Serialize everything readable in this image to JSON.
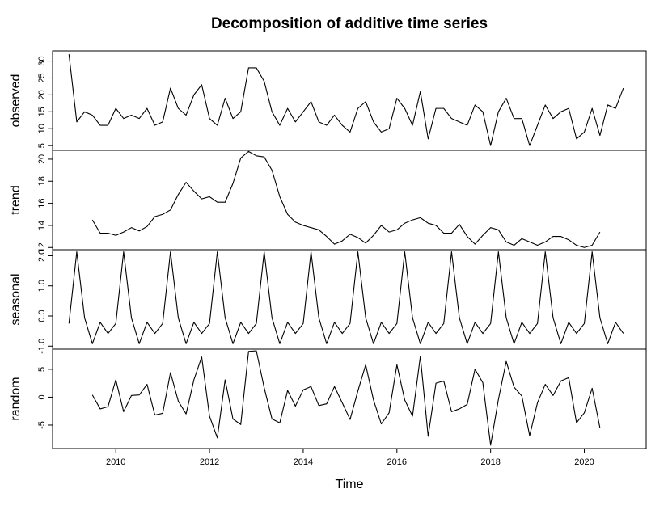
{
  "chart_data": {
    "type": "line",
    "title": "Decomposition of additive time series",
    "xlabel": "Time",
    "xlim": [
      2008.65,
      2021.32
    ],
    "x_ticks": [
      2010,
      2012,
      2014,
      2016,
      2018,
      2020
    ],
    "x_tick_labels": [
      "2010",
      "2012",
      "2014",
      "2016",
      "2018",
      "2020"
    ],
    "grid": false,
    "legend": "none",
    "line_color": "#000000",
    "series": [
      {
        "name": "observed",
        "ylim": [
          3.6,
          33
        ],
        "y_ticks": [
          5,
          10,
          15,
          20,
          25,
          30
        ],
        "y_tick_labels": [
          "5",
          "10",
          "15",
          "20",
          "25",
          "30"
        ],
        "x": [
          2009.0,
          2009.1667,
          2009.3333,
          2009.5,
          2009.6667,
          2009.8333,
          2010.0,
          2010.1667,
          2010.3333,
          2010.5,
          2010.6667,
          2010.8333,
          2011.0,
          2011.1667,
          2011.3333,
          2011.5,
          2011.6667,
          2011.8333,
          2012.0,
          2012.1667,
          2012.3333,
          2012.5,
          2012.6667,
          2012.8333,
          2013.0,
          2013.1667,
          2013.3333,
          2013.5,
          2013.6667,
          2013.8333,
          2014.0,
          2014.1667,
          2014.3333,
          2014.5,
          2014.6667,
          2014.8333,
          2015.0,
          2015.1667,
          2015.3333,
          2015.5,
          2015.6667,
          2015.8333,
          2016.0,
          2016.1667,
          2016.3333,
          2016.5,
          2016.6667,
          2016.8333,
          2017.0,
          2017.1667,
          2017.3333,
          2017.5,
          2017.6667,
          2017.8333,
          2018.0,
          2018.1667,
          2018.3333,
          2018.5,
          2018.6667,
          2018.8333,
          2019.0,
          2019.1667,
          2019.3333,
          2019.5,
          2019.6667,
          2019.8333,
          2020.0,
          2020.1667,
          2020.3333,
          2020.5,
          2020.6667,
          2020.8333
        ],
        "values": [
          32,
          12,
          15,
          14,
          11,
          11,
          16,
          13,
          14,
          13,
          16,
          11,
          12,
          22,
          16,
          14,
          20,
          23,
          13,
          11,
          19,
          13,
          15,
          28,
          28,
          24,
          15,
          11,
          16,
          12,
          15,
          18,
          12,
          11,
          14,
          11,
          9,
          16,
          18,
          12,
          9,
          10,
          19,
          16,
          11,
          21,
          7,
          16,
          16,
          13,
          12,
          11,
          17,
          15,
          5,
          15,
          19,
          13,
          13,
          5,
          11,
          17,
          13,
          15,
          16,
          7,
          9,
          16,
          8,
          17,
          16,
          22
        ]
      },
      {
        "name": "trend",
        "ylim": [
          11.8,
          20.8
        ],
        "y_ticks": [
          12,
          14,
          16,
          18,
          20
        ],
        "y_tick_labels": [
          "12",
          "14",
          "16",
          "18",
          "20"
        ],
        "x": [
          2009.5,
          2009.6667,
          2009.8333,
          2010.0,
          2010.1667,
          2010.3333,
          2010.5,
          2010.6667,
          2010.8333,
          2011.0,
          2011.1667,
          2011.3333,
          2011.5,
          2011.6667,
          2011.8333,
          2012.0,
          2012.1667,
          2012.3333,
          2012.5,
          2012.6667,
          2012.8333,
          2013.0,
          2013.1667,
          2013.3333,
          2013.5,
          2013.6667,
          2013.8333,
          2014.0,
          2014.1667,
          2014.3333,
          2014.5,
          2014.6667,
          2014.8333,
          2015.0,
          2015.1667,
          2015.3333,
          2015.5,
          2015.6667,
          2015.8333,
          2016.0,
          2016.1667,
          2016.3333,
          2016.5,
          2016.6667,
          2016.8333,
          2017.0,
          2017.1667,
          2017.3333,
          2017.5,
          2017.6667,
          2017.8333,
          2018.0,
          2018.1667,
          2018.3333,
          2018.5,
          2018.6667,
          2018.8333,
          2019.0,
          2019.1667,
          2019.3333,
          2019.5,
          2019.6667,
          2019.8333,
          2020.0,
          2020.1667,
          2020.3333
        ],
        "values": [
          14.5,
          13.3,
          13.3,
          13.1,
          13.4,
          13.8,
          13.5,
          13.9,
          14.8,
          15.0,
          15.4,
          16.8,
          17.9,
          17.1,
          16.4,
          16.6,
          16.1,
          16.1,
          17.8,
          20.1,
          20.7,
          20.3,
          20.2,
          19.0,
          16.6,
          15.0,
          14.3,
          14.0,
          13.8,
          13.6,
          13.0,
          12.3,
          12.6,
          13.2,
          12.9,
          12.4,
          13.1,
          14.0,
          13.4,
          13.6,
          14.2,
          14.5,
          14.7,
          14.2,
          14.0,
          13.3,
          13.3,
          14.1,
          13.0,
          12.3,
          13.1,
          13.8,
          13.6,
          12.5,
          12.2,
          12.8,
          12.5,
          12.2,
          12.5,
          13.0,
          13.0,
          12.7,
          12.2,
          12.0,
          12.2,
          13.4
        ]
      },
      {
        "name": "seasonal",
        "ylim": [
          -1.1,
          2.2
        ],
        "y_ticks": [
          -1.0,
          0.0,
          1.0,
          2.0
        ],
        "y_tick_labels": [
          "-1.0",
          "0.0",
          "1.0",
          "2.0"
        ],
        "x": [
          2009.0,
          2009.1667,
          2009.3333,
          2009.5,
          2009.6667,
          2009.8333,
          2010.0,
          2010.1667,
          2010.3333,
          2010.5,
          2010.6667,
          2010.8333,
          2011.0,
          2011.1667,
          2011.3333,
          2011.5,
          2011.6667,
          2011.8333,
          2012.0,
          2012.1667,
          2012.3333,
          2012.5,
          2012.6667,
          2012.8333,
          2013.0,
          2013.1667,
          2013.3333,
          2013.5,
          2013.6667,
          2013.8333,
          2014.0,
          2014.1667,
          2014.3333,
          2014.5,
          2014.6667,
          2014.8333,
          2015.0,
          2015.1667,
          2015.3333,
          2015.5,
          2015.6667,
          2015.8333,
          2016.0,
          2016.1667,
          2016.3333,
          2016.5,
          2016.6667,
          2016.8333,
          2017.0,
          2017.1667,
          2017.3333,
          2017.5,
          2017.6667,
          2017.8333,
          2018.0,
          2018.1667,
          2018.3333,
          2018.5,
          2018.6667,
          2018.8333,
          2019.0,
          2019.1667,
          2019.3333,
          2019.5,
          2019.6667,
          2019.8333,
          2020.0,
          2020.1667,
          2020.3333,
          2020.5,
          2020.6667,
          2020.8333
        ],
        "values": [
          -0.25,
          2.13,
          -0.06,
          -0.92,
          -0.21,
          -0.58,
          -0.25,
          2.13,
          -0.06,
          -0.92,
          -0.21,
          -0.58,
          -0.25,
          2.13,
          -0.06,
          -0.92,
          -0.21,
          -0.58,
          -0.25,
          2.13,
          -0.06,
          -0.92,
          -0.21,
          -0.58,
          -0.25,
          2.13,
          -0.06,
          -0.92,
          -0.21,
          -0.58,
          -0.25,
          2.13,
          -0.06,
          -0.92,
          -0.21,
          -0.58,
          -0.25,
          2.13,
          -0.06,
          -0.92,
          -0.21,
          -0.58,
          -0.25,
          2.13,
          -0.06,
          -0.92,
          -0.21,
          -0.58,
          -0.25,
          2.13,
          -0.06,
          -0.92,
          -0.21,
          -0.58,
          -0.25,
          2.13,
          -0.06,
          -0.92,
          -0.21,
          -0.58,
          -0.25,
          2.13,
          -0.06,
          -0.92,
          -0.21,
          -0.58,
          -0.25,
          2.13,
          -0.06,
          -0.92,
          -0.21,
          -0.58
        ]
      },
      {
        "name": "random",
        "ylim": [
          -9.2,
          8.6
        ],
        "y_ticks": [
          -5,
          0,
          5
        ],
        "y_tick_labels": [
          "-5",
          "0",
          "5"
        ],
        "x": [
          2009.5,
          2009.6667,
          2009.8333,
          2010.0,
          2010.1667,
          2010.3333,
          2010.5,
          2010.6667,
          2010.8333,
          2011.0,
          2011.1667,
          2011.3333,
          2011.5,
          2011.6667,
          2011.8333,
          2012.0,
          2012.1667,
          2012.3333,
          2012.5,
          2012.6667,
          2012.8333,
          2013.0,
          2013.1667,
          2013.3333,
          2013.5,
          2013.6667,
          2013.8333,
          2014.0,
          2014.1667,
          2014.3333,
          2014.5,
          2014.6667,
          2014.8333,
          2015.0,
          2015.1667,
          2015.3333,
          2015.5,
          2015.6667,
          2015.8333,
          2016.0,
          2016.1667,
          2016.3333,
          2016.5,
          2016.6667,
          2016.8333,
          2017.0,
          2017.1667,
          2017.3333,
          2017.5,
          2017.6667,
          2017.8333,
          2018.0,
          2018.1667,
          2018.3333,
          2018.5,
          2018.6667,
          2018.8333,
          2019.0,
          2019.1667,
          2019.3333,
          2019.5,
          2019.6667,
          2019.8333,
          2020.0,
          2020.1667,
          2020.3333
        ],
        "values": [
          0.4,
          -2.1,
          -1.7,
          3.1,
          -2.6,
          0.3,
          0.4,
          2.3,
          -3.2,
          -2.9,
          4.4,
          -0.7,
          -3.0,
          3.1,
          7.2,
          -3.4,
          -7.3,
          3.1,
          -3.9,
          -4.9,
          8.2,
          8.3,
          1.7,
          -3.9,
          -4.6,
          1.2,
          -1.6,
          1.3,
          1.9,
          -1.5,
          -1.2,
          1.9,
          -1.0,
          -4.0,
          1.1,
          5.8,
          -0.5,
          -4.8,
          -2.8,
          5.8,
          -0.5,
          -3.4,
          7.3,
          -7.0,
          2.5,
          2.9,
          -2.6,
          -2.1,
          -1.3,
          5.0,
          2.6,
          -8.6,
          -0.4,
          6.4,
          1.8,
          0.2,
          -6.9,
          -1.0,
          2.3,
          0.3,
          2.9,
          3.5,
          -4.6,
          -2.8,
          1.6,
          -5.5
        ]
      }
    ]
  }
}
